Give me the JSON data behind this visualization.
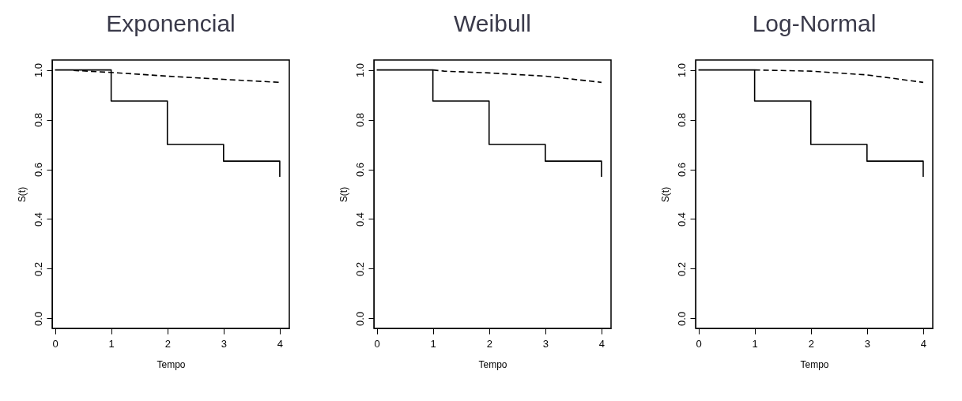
{
  "chart_data": [
    {
      "type": "step",
      "title": "Exponencial",
      "xlabel": "Tempo",
      "ylabel": "S(t)",
      "xlim": [
        -0.05,
        4.17
      ],
      "ylim": [
        -0.04,
        1.04
      ],
      "xticks": [
        0,
        1,
        2,
        3,
        4
      ],
      "yticks": [
        {
          "value": 0,
          "label": "0.0"
        },
        {
          "value": 0.2,
          "label": "0.2"
        },
        {
          "value": 0.4,
          "label": "0.4"
        },
        {
          "value": 0.6,
          "label": "0.6"
        },
        {
          "value": 0.8,
          "label": "0.8"
        },
        {
          "value": 1,
          "label": "1.0"
        }
      ],
      "grid": false,
      "series": [
        {
          "color": "#000000",
          "line_style": "solid",
          "x": [
            0,
            1,
            2,
            3,
            4
          ],
          "values": [
            1.0,
            0.875,
            0.7,
            0.633,
            0.57
          ]
        },
        {
          "type": "line",
          "color": "#000000",
          "line_style": "dashed",
          "x": [
            0.33,
            1,
            2,
            3,
            4
          ],
          "values": [
            0.998,
            0.99,
            0.975,
            0.962,
            0.95
          ]
        }
      ]
    },
    {
      "type": "step",
      "title": "Weibull",
      "xlabel": "Tempo",
      "ylabel": "S(t)",
      "xlim": [
        -0.05,
        4.17
      ],
      "ylim": [
        -0.04,
        1.04
      ],
      "xticks": [
        0,
        1,
        2,
        3,
        4
      ],
      "yticks": [
        {
          "value": 0,
          "label": "0.0"
        },
        {
          "value": 0.2,
          "label": "0.2"
        },
        {
          "value": 0.4,
          "label": "0.4"
        },
        {
          "value": 0.6,
          "label": "0.6"
        },
        {
          "value": 0.8,
          "label": "0.8"
        },
        {
          "value": 1,
          "label": "1.0"
        }
      ],
      "grid": false,
      "series": [
        {
          "color": "#000000",
          "line_style": "solid",
          "x": [
            0,
            1,
            2,
            3,
            4
          ],
          "values": [
            1.0,
            0.875,
            0.7,
            0.633,
            0.57
          ]
        },
        {
          "type": "line",
          "color": "#000000",
          "line_style": "dashed",
          "x": [
            1,
            1.2,
            2,
            3,
            4
          ],
          "values": [
            1.0,
            0.995,
            0.988,
            0.975,
            0.95
          ]
        }
      ]
    },
    {
      "type": "step",
      "title": "Log-Normal",
      "xlabel": "Tempo",
      "ylabel": "S(t)",
      "xlim": [
        -0.05,
        4.17
      ],
      "ylim": [
        -0.04,
        1.04
      ],
      "xticks": [
        0,
        1,
        2,
        3,
        4
      ],
      "yticks": [
        {
          "value": 0,
          "label": "0.0"
        },
        {
          "value": 0.2,
          "label": "0.2"
        },
        {
          "value": 0.4,
          "label": "0.4"
        },
        {
          "value": 0.6,
          "label": "0.6"
        },
        {
          "value": 0.8,
          "label": "0.8"
        },
        {
          "value": 1,
          "label": "1.0"
        }
      ],
      "grid": false,
      "series": [
        {
          "color": "#000000",
          "line_style": "solid",
          "x": [
            0,
            1,
            2,
            3,
            4
          ],
          "values": [
            1.0,
            0.875,
            0.7,
            0.633,
            0.57
          ]
        },
        {
          "type": "line",
          "color": "#000000",
          "line_style": "dashed",
          "x": [
            1,
            2,
            3,
            4
          ],
          "values": [
            1.0,
            0.995,
            0.98,
            0.95
          ]
        }
      ]
    }
  ]
}
